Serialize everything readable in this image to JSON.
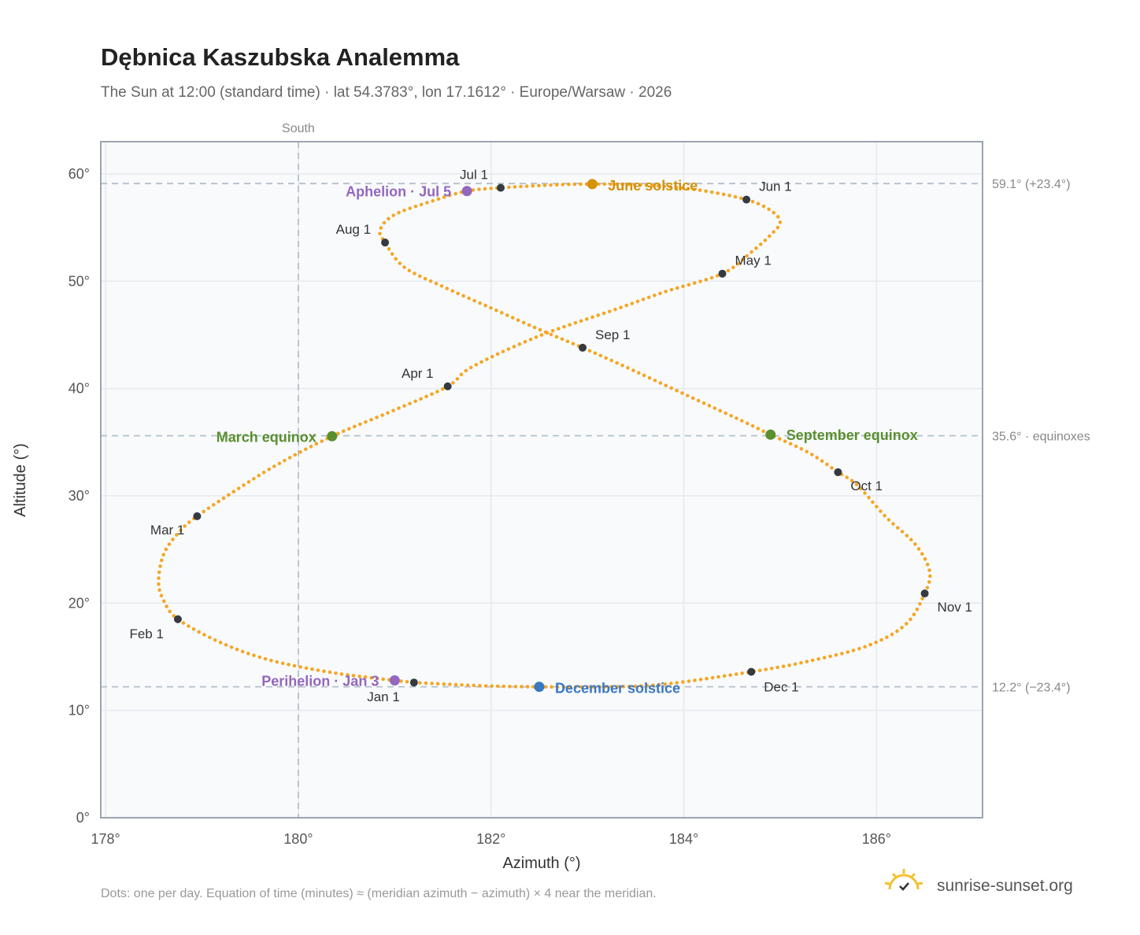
{
  "header": {
    "title": "Dębnica Kaszubska Analemma",
    "subtitle": "The Sun at 12:00 (standard time) · lat 54.3783°, lon 17.1612° · Europe/Warsaw · 2026"
  },
  "footer": {
    "note": "Dots: one per day. Equation of time (minutes) ≈ (meridian azimuth − azimuth) × 4 near the meridian.",
    "brand": "sunrise-sunset.org"
  },
  "colors": {
    "curve": "#f5a623",
    "month_dot": "#343a40",
    "equinox": "#5a8f2e",
    "june_solstice": "#d4920a",
    "december_solstice": "#3a78c2",
    "apsis": "#9467bd",
    "grid": "#e6e9ee",
    "plot_bg": "#f8fafc",
    "frame": "#9aa5b1",
    "reference_line": "#b5c0cb"
  },
  "chart_data": {
    "type": "scatter",
    "title": "Dębnica Kaszubska Analemma",
    "xlabel": "Azimuth (°)",
    "ylabel": "Altitude (°)",
    "xlim": [
      177.95,
      187.1
    ],
    "ylim": [
      0,
      63
    ],
    "x_ticks": [
      178,
      180,
      182,
      184,
      186
    ],
    "x_tick_labels": [
      "178°",
      "180°",
      "182°",
      "184°",
      "186°"
    ],
    "y_ticks": [
      0,
      10,
      20,
      30,
      40,
      50,
      60
    ],
    "y_tick_labels": [
      "0°",
      "10°",
      "20°",
      "30°",
      "40°",
      "50°",
      "60°"
    ],
    "grid": true,
    "vertical_reference": {
      "x": 180,
      "label": "South"
    },
    "horizontal_references": [
      {
        "y": 59.1,
        "label": "59.1° (+23.4°)"
      },
      {
        "y": 35.6,
        "label": "35.6° · equinoxes"
      },
      {
        "y": 12.2,
        "label": "12.2° (−23.4°)"
      }
    ],
    "curve_points": [
      [
        181.2,
        12.6
      ],
      [
        181.9,
        12.3
      ],
      [
        182.5,
        12.2
      ],
      [
        183.1,
        12.2
      ],
      [
        183.75,
        12.4
      ],
      [
        184.7,
        13.6
      ],
      [
        185.3,
        14.6
      ],
      [
        185.9,
        16.0
      ],
      [
        186.3,
        18.0
      ],
      [
        186.5,
        20.9
      ],
      [
        186.55,
        23.0
      ],
      [
        186.4,
        25.5
      ],
      [
        186.1,
        28.0
      ],
      [
        185.8,
        31.0
      ],
      [
        185.6,
        32.2
      ],
      [
        185.3,
        34.0
      ],
      [
        184.9,
        35.7
      ],
      [
        184.6,
        37.0
      ],
      [
        184.0,
        39.5
      ],
      [
        183.4,
        42.0
      ],
      [
        182.95,
        43.8
      ],
      [
        182.5,
        45.5
      ],
      [
        182.0,
        47.5
      ],
      [
        181.5,
        49.5
      ],
      [
        181.1,
        51.3
      ],
      [
        180.9,
        53.6
      ],
      [
        180.85,
        54.8
      ],
      [
        181.0,
        56.2
      ],
      [
        181.4,
        57.5
      ],
      [
        181.75,
        58.4
      ],
      [
        182.1,
        58.7
      ],
      [
        182.6,
        58.95
      ],
      [
        183.05,
        59.05
      ],
      [
        183.6,
        58.95
      ],
      [
        184.15,
        58.5
      ],
      [
        184.65,
        57.6
      ],
      [
        184.9,
        56.6
      ],
      [
        185.0,
        55.5
      ],
      [
        184.9,
        54.3
      ],
      [
        184.7,
        52.7
      ],
      [
        184.4,
        50.7
      ],
      [
        183.8,
        49.0
      ],
      [
        183.3,
        47.4
      ],
      [
        182.5,
        44.9
      ],
      [
        181.8,
        42.0
      ],
      [
        181.55,
        40.2
      ],
      [
        181.0,
        38.0
      ],
      [
        180.35,
        35.55
      ],
      [
        179.8,
        33.0
      ],
      [
        179.4,
        30.8
      ],
      [
        178.95,
        28.1
      ],
      [
        178.75,
        26.5
      ],
      [
        178.6,
        24.5
      ],
      [
        178.55,
        22.0
      ],
      [
        178.6,
        20.3
      ],
      [
        178.75,
        18.5
      ],
      [
        179.2,
        16.3
      ],
      [
        179.7,
        14.7
      ],
      [
        180.3,
        13.6
      ],
      [
        180.8,
        13.0
      ],
      [
        181.2,
        12.6
      ]
    ],
    "month_markers": [
      {
        "label": "Jan 1",
        "x": 181.2,
        "y": 12.6
      },
      {
        "label": "Feb 1",
        "x": 178.75,
        "y": 18.5
      },
      {
        "label": "Mar 1",
        "x": 178.95,
        "y": 28.1
      },
      {
        "label": "Apr 1",
        "x": 181.55,
        "y": 40.2
      },
      {
        "label": "May 1",
        "x": 184.4,
        "y": 50.7
      },
      {
        "label": "Jun 1",
        "x": 184.65,
        "y": 57.6
      },
      {
        "label": "Jul 1",
        "x": 182.1,
        "y": 58.7
      },
      {
        "label": "Aug 1",
        "x": 180.9,
        "y": 53.6
      },
      {
        "label": "Sep 1",
        "x": 182.95,
        "y": 43.8
      },
      {
        "label": "Oct 1",
        "x": 185.6,
        "y": 32.2
      },
      {
        "label": "Nov 1",
        "x": 186.5,
        "y": 20.9
      },
      {
        "label": "Dec 1",
        "x": 184.7,
        "y": 13.6
      }
    ],
    "events": [
      {
        "label": "March equinox",
        "x": 180.35,
        "y": 35.55,
        "color_key": "equinox"
      },
      {
        "label": "September equinox",
        "x": 184.9,
        "y": 35.7,
        "color_key": "equinox"
      },
      {
        "label": "June solstice",
        "x": 183.05,
        "y": 59.05,
        "color_key": "june_solstice"
      },
      {
        "label": "December solstice",
        "x": 182.5,
        "y": 12.2,
        "color_key": "december_solstice"
      },
      {
        "label": "Aphelion · Jul 5",
        "x": 181.75,
        "y": 58.4,
        "color_key": "apsis"
      },
      {
        "label": "Perihelion · Jan 3",
        "x": 181.0,
        "y": 12.8,
        "color_key": "apsis"
      }
    ]
  }
}
